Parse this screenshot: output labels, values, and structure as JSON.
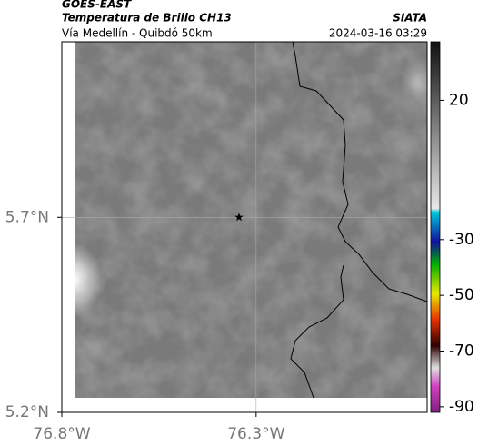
{
  "header": {
    "title": "GOES-EAST",
    "subtitle": "Temperatura de Brillo CH13",
    "brand": "SIATA",
    "route": "Vía Medellín - Quibdó 50km",
    "timestamp": "2024-03-16 03:29"
  },
  "map": {
    "xlim": [
      -76.8,
      -75.86
    ],
    "ylim": [
      5.2,
      6.15
    ],
    "xticks": [
      {
        "value": -76.8,
        "label": "76.8°W"
      },
      {
        "value": -76.3,
        "label": "76.3°W"
      }
    ],
    "yticks": [
      {
        "value": 5.2,
        "label": "5.2°N"
      },
      {
        "value": 5.7,
        "label": "5.7°N"
      }
    ],
    "marker": {
      "lon": -76.344,
      "lat": 5.7
    }
  },
  "colorbar": {
    "lim": [
      41,
      -92
    ],
    "ticks": [
      20,
      -30,
      -50,
      -70,
      -90
    ]
  }
}
